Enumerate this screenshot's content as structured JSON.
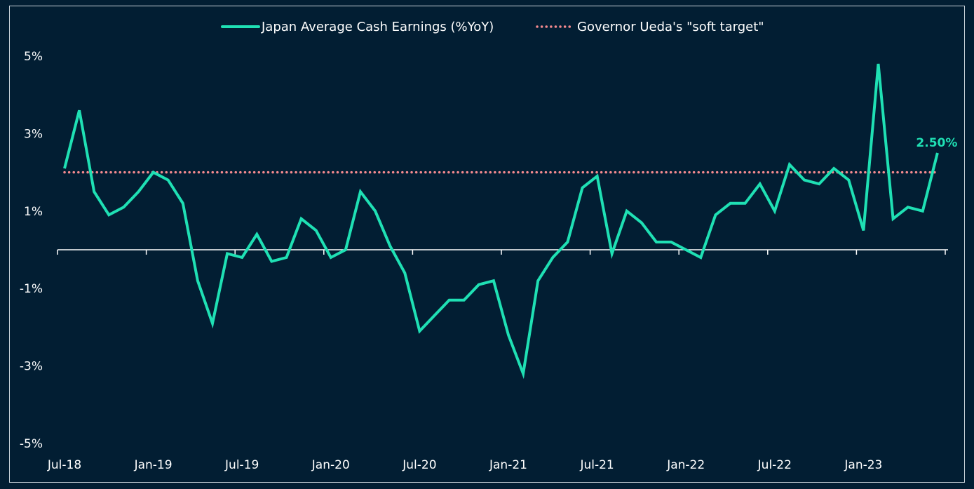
{
  "chart_data": {
    "type": "line",
    "title": "",
    "xlabel": "",
    "ylabel": "",
    "ylim": [
      -5,
      5
    ],
    "yticks": [
      5,
      3,
      1,
      -1,
      -3,
      -5
    ],
    "ytick_labels": [
      "5%",
      "3%",
      "1%",
      "-1%",
      "-3%",
      "-5%"
    ],
    "xtick_labels": [
      "Jul-18",
      "Jan-19",
      "Jul-19",
      "Jan-20",
      "Jul-20",
      "Jan-21",
      "Jul-21",
      "Jan-22",
      "Jul-22",
      "Jan-23"
    ],
    "grid": false,
    "legend_position": "top-center",
    "series": [
      {
        "name": "Japan Average Cash Earnings (%YoY)",
        "color": "#1fe0b4",
        "start": "Jul-18",
        "values": [
          2.1,
          3.6,
          1.5,
          0.9,
          1.1,
          1.5,
          2.0,
          1.8,
          1.2,
          -0.8,
          -1.9,
          -0.1,
          -0.2,
          0.4,
          -0.3,
          -0.2,
          0.8,
          0.5,
          -0.2,
          0.0,
          1.5,
          1.0,
          0.1,
          -0.6,
          -2.1,
          -1.7,
          -1.3,
          -1.3,
          -0.9,
          -0.8,
          -2.2,
          -3.2,
          -0.8,
          -0.2,
          0.2,
          1.6,
          1.9,
          -0.1,
          1.0,
          0.7,
          0.2,
          0.2,
          0.0,
          -0.2,
          0.9,
          1.2,
          1.2,
          1.7,
          1.0,
          2.2,
          1.8,
          1.7,
          2.1,
          1.8,
          0.5,
          4.8,
          0.8,
          1.1,
          1.0,
          2.5
        ]
      },
      {
        "name": "Governor Ueda's \"soft target\"",
        "color": "#f2898e",
        "style": "dotted",
        "value": 2.0
      }
    ],
    "annotations": [
      {
        "text": "2.50%",
        "series": "Japan Average Cash Earnings (%YoY)",
        "position": "last-point"
      }
    ]
  }
}
